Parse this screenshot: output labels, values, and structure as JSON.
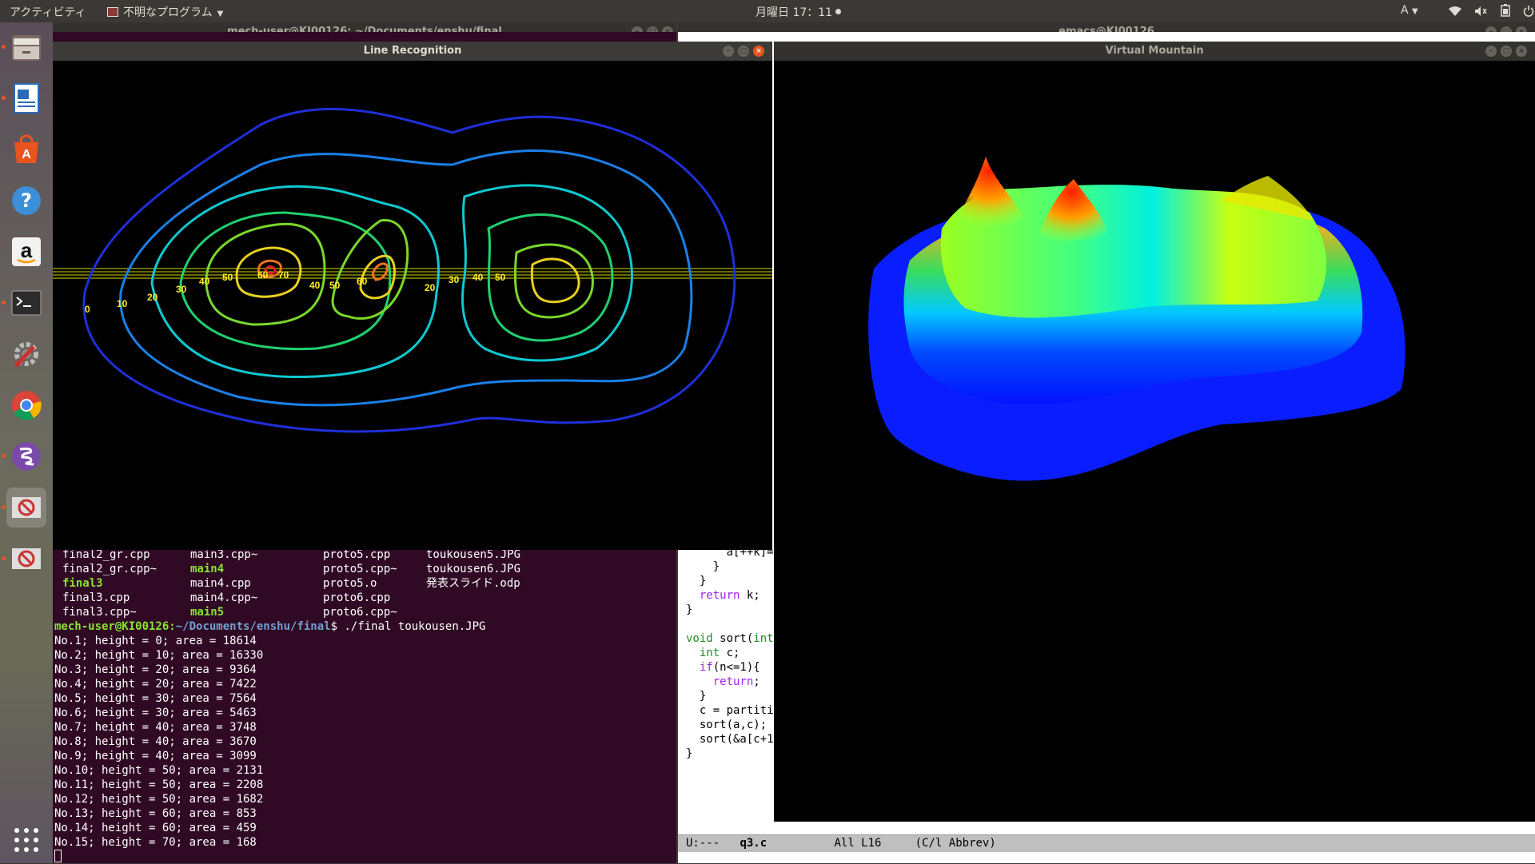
{
  "top_panel": {
    "activities": "アクティビティ",
    "app_menu": "不明なプログラム",
    "clock": "月曜日 17：11",
    "input_indicator": "A",
    "icons": [
      "wifi-icon",
      "volume-icon",
      "battery-icon",
      "power-icon"
    ]
  },
  "launcher": {
    "items": [
      {
        "name": "files-icon",
        "running": true
      },
      {
        "name": "writer-icon",
        "running": true
      },
      {
        "name": "software-center-icon",
        "running": false
      },
      {
        "name": "help-icon",
        "running": false
      },
      {
        "name": "amazon-icon",
        "running": false
      },
      {
        "name": "terminal-icon",
        "running": true
      },
      {
        "name": "system-settings-icon",
        "running": false
      },
      {
        "name": "chrome-icon",
        "running": false
      },
      {
        "name": "emacs-icon",
        "running": true
      },
      {
        "name": "unknown-app-icon",
        "running": true
      },
      {
        "name": "unknown-app-icon-2",
        "running": true
      },
      {
        "name": "show-apps-icon",
        "running": false
      }
    ]
  },
  "terminal": {
    "title": "mech-user@KI00126: ~/Documents/enshu/final",
    "listing_rows": [
      [
        "final2_gr.cpp",
        "main3.cpp~",
        "proto5.cpp",
        "toukousen5.JPG"
      ],
      [
        "final2_gr.cpp~",
        "main4",
        "proto5.cpp~",
        "toukousen6.JPG"
      ],
      [
        "final3",
        "main4.cpp",
        "proto5.o",
        "発表スライド.odp"
      ],
      [
        "final3.cpp",
        "main4.cpp~",
        "proto6.cpp",
        ""
      ],
      [
        "final3.cpp~",
        "main5",
        "proto6.cpp~",
        ""
      ]
    ],
    "executables": [
      "main4",
      "final3",
      "main5"
    ],
    "prompt_user": "mech-user@KI00126",
    "prompt_path": "~/Documents/enshu/final",
    "command": "$ ./final toukousen.JPG",
    "output": [
      "No.1; height = 0; area = 18614",
      "No.2; height = 10; area = 16330",
      "No.3; height = 20; area = 9364",
      "No.4; height = 20; area = 7422",
      "No.5; height = 30; area = 7564",
      "No.6; height = 30; area = 5463",
      "No.7; height = 40; area = 3748",
      "No.8; height = 40; area = 3670",
      "No.9; height = 40; area = 3099",
      "No.10; height = 50; area = 2131",
      "No.11; height = 50; area = 2208",
      "No.12; height = 50; area = 1682",
      "No.13; height = 60; area = 853",
      "No.14; height = 60; area = 459",
      "No.15; height = 70; area = 168"
    ]
  },
  "emacs": {
    "title": "emacs@KI00126",
    "code_lines": [
      "      a[++k]=",
      "    }",
      "  }",
      "  return k;",
      "}",
      "",
      "void sort(int",
      "  int c;",
      "  if(n<=1){",
      "    return;",
      "  }",
      "  c = partiti",
      "  sort(a,c);",
      "  sort(&a[c+1",
      "}"
    ],
    "modeline": {
      "state": "U:---",
      "buffer": "q3.c",
      "position": "All L16",
      "mode": "(C/l Abbrev)"
    }
  },
  "line_recognition": {
    "title": "Line Recognition",
    "contour_labels": [
      "0",
      "10",
      "20",
      "30",
      "40",
      "50",
      "60",
      "70",
      "40",
      "50",
      "60",
      "20",
      "30",
      "40",
      "50"
    ]
  },
  "virtual_mountain": {
    "title": "Virtual Mountain"
  },
  "colors": {
    "terminal_bg": "#300a24",
    "accent": "#e95420",
    "exec_green": "#8ae234",
    "path_blue": "#729fcf"
  }
}
